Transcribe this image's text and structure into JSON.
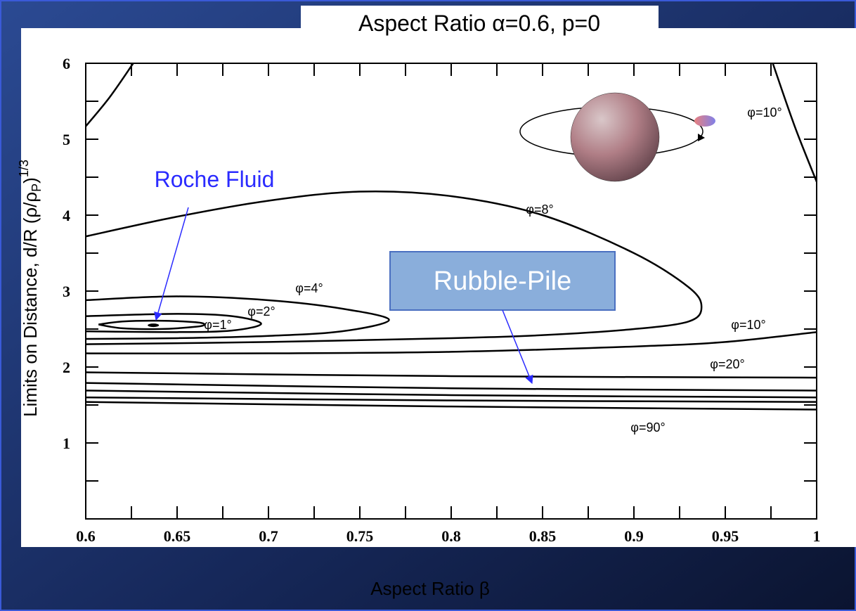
{
  "chart_data": {
    "type": "contour",
    "title": "Aspect Ratio α=0.6, p=0",
    "x_label": "Aspect Ratio β",
    "y_label": {
      "text": "Limits on Distance, d/R (ρ/ρ",
      "subscript": "P",
      "after": ")",
      "superscript": "1/3"
    },
    "xlim": [
      0.6,
      1
    ],
    "ylim": [
      0,
      6
    ],
    "xticks": [
      0.6,
      0.65,
      0.7,
      0.75,
      0.8,
      0.85,
      0.9,
      0.95,
      1
    ],
    "yticks": [
      1,
      2,
      3,
      4,
      5,
      6
    ],
    "xminorticks": [
      0.625,
      0.675,
      0.725,
      0.775,
      0.825,
      0.875,
      0.925,
      0.975
    ],
    "yminorticks": [
      0.5,
      1.5,
      2.5,
      3.5,
      4.5,
      5.5
    ],
    "color": "#000000",
    "series": [
      {
        "x": [
          0.6,
          0.613,
          0.626
        ],
        "values": [
          5.17,
          5.55,
          6
        ]
      },
      {
        "name": "φ=10°",
        "x": [
          0.976,
          0.988,
          1.0
        ],
        "values": [
          6,
          5.17,
          4.44
        ]
      },
      {
        "name": "φ=8°",
        "x": [
          0.6,
          0.65,
          0.7,
          0.75,
          0.8,
          0.85,
          0.9,
          0.93,
          0.937,
          0.93,
          0.9,
          0.85,
          0.8,
          0.7,
          0.6
        ],
        "values": [
          3.72,
          3.98,
          4.19,
          4.31,
          4.25,
          4.0,
          3.5,
          3.05,
          2.79,
          2.6,
          2.5,
          2.42,
          2.38,
          2.33,
          2.3
        ]
      },
      {
        "name": "φ=4°",
        "x": [
          0.6,
          0.65,
          0.7,
          0.74,
          0.766,
          0.74,
          0.7,
          0.65,
          0.6
        ],
        "values": [
          2.88,
          2.93,
          2.88,
          2.77,
          2.62,
          2.47,
          2.41,
          2.38,
          2.37
        ]
      },
      {
        "name": "φ=2°",
        "x": [
          0.6,
          0.65,
          0.68,
          0.696,
          0.68,
          0.65,
          0.6
        ],
        "values": [
          2.67,
          2.7,
          2.67,
          2.57,
          2.48,
          2.46,
          2.47
        ]
      },
      {
        "name": "φ=1°",
        "x": [
          0.607,
          0.62,
          0.64,
          0.66,
          0.665,
          0.66,
          0.64,
          0.62,
          0.607
        ],
        "values": [
          2.56,
          2.6,
          2.61,
          2.59,
          2.56,
          2.53,
          2.5,
          2.51,
          2.56
        ]
      },
      {
        "name": "φ=10°",
        "x": [
          0.6,
          0.7,
          0.8,
          0.9,
          0.95,
          1.0
        ],
        "values": [
          2.18,
          2.18,
          2.2,
          2.27,
          2.33,
          2.46
        ]
      },
      {
        "name": "φ=20°",
        "x": [
          0.6,
          0.8,
          1.0
        ],
        "values": [
          1.93,
          1.88,
          1.86
        ]
      },
      {
        "x": [
          0.6,
          0.8,
          1.0
        ],
        "values": [
          1.79,
          1.72,
          1.69
        ]
      },
      {
        "x": [
          0.6,
          0.8,
          1.0
        ],
        "values": [
          1.69,
          1.63,
          1.6
        ]
      },
      {
        "x": [
          0.6,
          0.8,
          1.0
        ],
        "values": [
          1.6,
          1.56,
          1.54
        ]
      },
      {
        "name": "φ=90°",
        "x": [
          0.6,
          0.8,
          1.0
        ],
        "values": [
          1.54,
          1.48,
          1.44
        ]
      }
    ],
    "dot": {
      "x": 0.637,
      "y": 2.55
    },
    "annotations": [
      "Roche Fluid",
      "Rubble-Pile"
    ]
  }
}
